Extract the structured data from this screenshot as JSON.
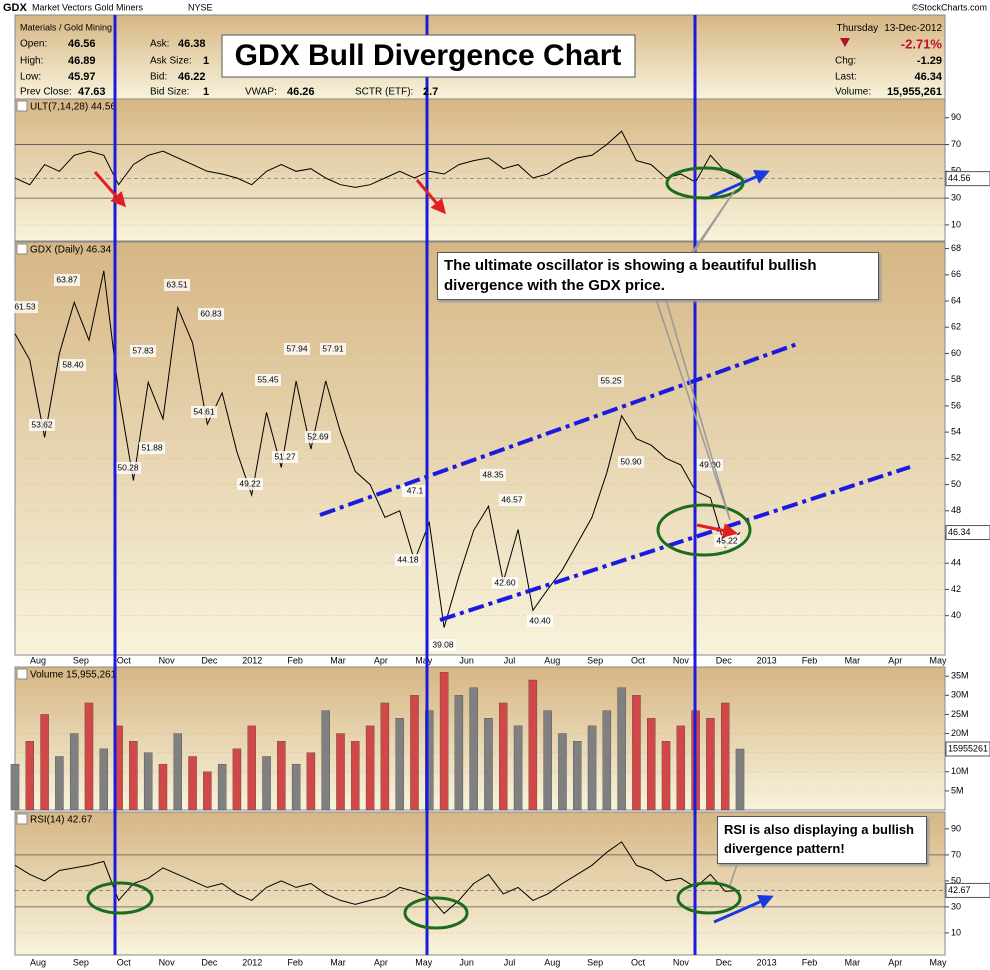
{
  "header": {
    "symbol": "GDX",
    "name": "Market Vectors Gold Miners",
    "exchange": "NYSE",
    "copyright": "©StockCharts.com",
    "sector": "Materials / Gold Mining",
    "fields": [
      [
        "Open:",
        "46.56"
      ],
      [
        "High:",
        "46.89"
      ],
      [
        "Low:",
        "45.97"
      ],
      [
        "Prev Close:",
        "47.63"
      ]
    ],
    "fields2": [
      [
        "Ask:",
        "46.38"
      ],
      [
        "Ask Size:",
        "1"
      ],
      [
        "Bid:",
        "46.22"
      ],
      [
        "Bid Size:",
        "1"
      ]
    ],
    "fields3": [
      [
        "VWAP:",
        "46.26"
      ],
      [
        "SCTR (ETF):",
        "2.7"
      ]
    ],
    "day": "Thursday",
    "date": "13-Dec-2012",
    "change_pct": "-2.71%",
    "right_fields": [
      [
        "Chg:",
        "-1.29"
      ],
      [
        "Last:",
        "46.34"
      ],
      [
        "Volume:",
        "15,955,261"
      ]
    ],
    "title": "GDX Bull Divergence Chart"
  },
  "chart_data": [
    {
      "type": "line",
      "label": "ULT(7,14,28) 44.56",
      "color": "#000000",
      "ylim": [
        -2,
        104
      ],
      "yticks": [
        90,
        70,
        50,
        30,
        10
      ],
      "bands": [
        30,
        70
      ],
      "values": [
        45,
        40,
        55,
        50,
        62,
        65,
        62,
        40,
        55,
        62,
        65,
        60,
        55,
        50,
        48,
        45,
        40,
        50,
        55,
        50,
        52,
        45,
        40,
        38,
        40,
        45,
        50,
        45,
        50,
        48,
        55,
        58,
        60,
        52,
        55,
        45,
        48,
        55,
        60,
        62,
        70,
        80,
        58,
        55,
        45,
        48,
        42,
        62,
        50,
        44.56
      ]
    },
    {
      "type": "line",
      "label": "GDX (Daily) 46.34",
      "color": "#000000",
      "ylim": [
        37,
        68.5
      ],
      "yticks": [
        68,
        66,
        64,
        62,
        60,
        58,
        56,
        54,
        52,
        50,
        48,
        46,
        44,
        42,
        40
      ],
      "values": [
        61.5,
        59.5,
        53.6,
        60,
        63.9,
        61,
        66.3,
        57,
        50.3,
        57.8,
        55,
        63.5,
        60.8,
        54.6,
        57,
        52.5,
        49.2,
        55.5,
        51.3,
        57.9,
        52.7,
        57.9,
        54,
        51,
        50,
        47.5,
        48,
        44.2,
        47.1,
        39.1,
        43,
        46.5,
        48.35,
        42.6,
        46.57,
        40.4,
        42,
        43.5,
        45.5,
        47.5,
        50.9,
        55.25,
        53.5,
        53,
        52,
        51.5,
        49.5,
        49,
        45.22,
        46.34
      ],
      "annotations": [
        "61.53",
        "63.87",
        "58.40",
        "53.62",
        "57.83",
        "50.28",
        "51.88",
        "63.51",
        "60.83",
        "54.61",
        "49.22",
        "55.45",
        "51.27",
        "57.94",
        "57.91",
        "52.69",
        "47.1",
        "44.18",
        "39.08",
        "48.35",
        "46.57",
        "42.60",
        "40.40",
        "55.25",
        "50.90",
        "49.00",
        "45.22"
      ],
      "note": "The ultimate oscillator is showing a beautiful bullish divergence with the GDX price.",
      "xtick_labels": [
        "Aug",
        "Sep",
        "Oct",
        "Nov",
        "Dec",
        "2012",
        "Feb",
        "Mar",
        "Apr",
        "May",
        "Jun",
        "Jul",
        "Aug",
        "Sep",
        "Oct",
        "Nov",
        "Dec",
        "2013",
        "Feb",
        "Mar",
        "Apr",
        "May"
      ]
    },
    {
      "type": "volume",
      "label": "Volume 15,955,261",
      "up_color": "#808080",
      "down_color": "#d04848",
      "ylim": [
        0,
        37400000
      ],
      "yticks": [
        {
          "value": 35000000,
          "label": "35M"
        },
        {
          "value": 30000000,
          "label": "30M"
        },
        {
          "value": 25000000,
          "label": "25M"
        },
        {
          "value": 20000000,
          "label": "20M"
        },
        {
          "value": 15000000,
          "label": "15M"
        },
        {
          "value": 10000000,
          "label": "10M"
        },
        {
          "value": 5000000,
          "label": "5M"
        }
      ],
      "values": [
        12000000,
        18000000,
        25000000,
        14000000,
        20000000,
        28000000,
        16000000,
        22000000,
        18000000,
        15000000,
        12000000,
        20000000,
        14000000,
        10000000,
        12000000,
        16000000,
        22000000,
        14000000,
        18000000,
        12000000,
        15000000,
        26000000,
        20000000,
        18000000,
        22000000,
        28000000,
        24000000,
        30000000,
        26000000,
        36000000,
        30000000,
        32000000,
        24000000,
        28000000,
        22000000,
        34000000,
        26000000,
        20000000,
        18000000,
        22000000,
        26000000,
        32000000,
        30000000,
        24000000,
        18000000,
        22000000,
        26000000,
        24000000,
        28000000,
        15955261
      ]
    },
    {
      "type": "line",
      "label": "RSI(14) 42.67",
      "color": "#000000",
      "ylim": [
        -7,
        103
      ],
      "yticks": [
        90,
        70,
        50,
        30,
        10
      ],
      "bands": [
        30,
        70
      ],
      "values": [
        62,
        55,
        50,
        58,
        60,
        62,
        65,
        35,
        48,
        52,
        60,
        55,
        50,
        45,
        48,
        40,
        35,
        45,
        50,
        45,
        48,
        40,
        35,
        32,
        35,
        38,
        45,
        42,
        38,
        25,
        35,
        48,
        55,
        40,
        45,
        35,
        40,
        48,
        55,
        62,
        72,
        80,
        62,
        58,
        50,
        52,
        45,
        55,
        42,
        42.67
      ],
      "note": "RSI is also displaying a bullish divergence pattern!",
      "xtick_labels": [
        "Aug",
        "Sep",
        "Oct",
        "Nov",
        "Dec",
        "2012",
        "Feb",
        "Mar",
        "Apr",
        "May",
        "Jun",
        "Jul",
        "Aug",
        "Sep",
        "Oct",
        "Nov",
        "Dec",
        "2013",
        "Feb",
        "Mar",
        "Apr",
        "May"
      ]
    }
  ]
}
